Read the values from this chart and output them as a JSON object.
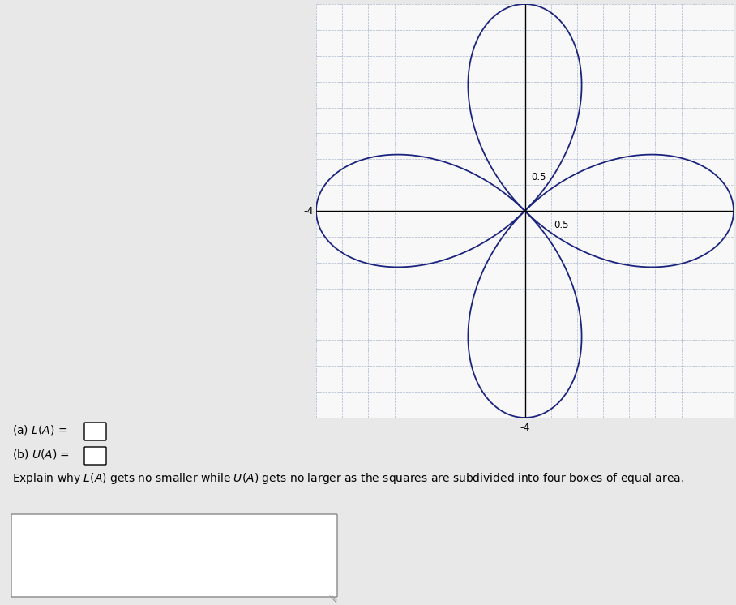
{
  "xlim": [
    -4,
    4
  ],
  "ylim": [
    -4,
    4
  ],
  "axis_color": "#000000",
  "curve_color": "#1a237e",
  "curve_linewidth": 1.3,
  "background_color": "#e8e8e8",
  "plot_bg_color": "#f8f8f8",
  "grid_color": "#aab4cc",
  "grid_linestyle": "--",
  "grid_linewidth": 0.5,
  "tick_label_color": "#000000",
  "label_05_x_text": "0.5",
  "label_05_y_text": "0.5",
  "text_section": {
    "a_label": "(a) $L(A)$ =",
    "b_label": "(b) $U(A)$ =",
    "explain_text": "Explain why $L(A)$ gets no smaller while $U(A)$ gets no larger as the squares are subdivided into four boxes of equal area.",
    "font_size": 10
  }
}
